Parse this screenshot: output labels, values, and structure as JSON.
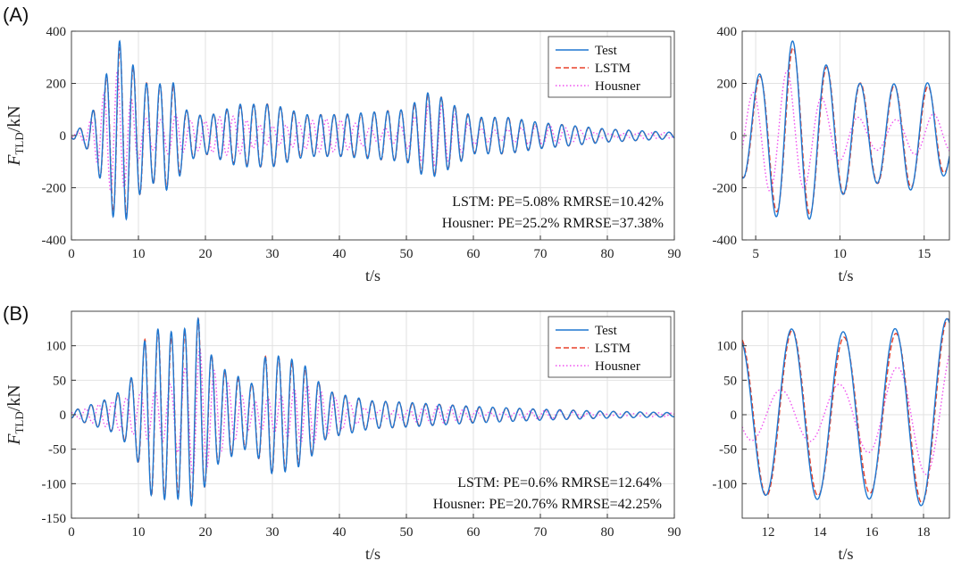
{
  "figure": {
    "panel_a_label": "(A)",
    "panel_b_label": "(B)"
  },
  "chart_data": [
    {
      "id": "A-main",
      "type": "line",
      "xlabel": "t/s",
      "ylabel": "F",
      "ylabel_sub": "TLD",
      "ylabel_unit": "/kN",
      "xlim": [
        0,
        90
      ],
      "ylim": [
        -400,
        400
      ],
      "xticks": [
        0,
        10,
        20,
        30,
        40,
        50,
        60,
        70,
        80,
        90
      ],
      "yticks": [
        -400,
        -200,
        0,
        200,
        400
      ],
      "grid": true,
      "legend_position": "top-right",
      "annotations": [
        "LSTM:    PE=5.08%  RMRSE=10.42%",
        "Housner: PE=25.2%  RMRSE=37.38%"
      ],
      "series": [
        {
          "name": "Test",
          "color": "#1f77d0",
          "dash": "solid"
        },
        {
          "name": "LSTM",
          "color": "#e8402a",
          "dash": "dashed"
        },
        {
          "name": "Housner",
          "color": "#f050f0",
          "dash": "dotted"
        }
      ],
      "envelope": {
        "t": [
          0,
          2,
          3.5,
          5,
          7,
          8,
          10,
          12,
          14,
          15.5,
          17,
          20,
          25,
          30,
          35,
          40,
          45,
          50,
          53,
          55,
          60,
          65,
          70,
          80,
          90
        ],
        "amp": [
          10,
          40,
          110,
          220,
          370,
          330,
          230,
          180,
          210,
          200,
          100,
          70,
          120,
          120,
          80,
          80,
          90,
          100,
          165,
          150,
          70,
          70,
          50,
          25,
          12
        ]
      },
      "period": 2.0,
      "phase_peak_t": 7.2
    },
    {
      "id": "A-zoom",
      "type": "line",
      "xlabel": "t/s",
      "xlim": [
        4.2,
        16.5
      ],
      "ylim": [
        -400,
        400
      ],
      "xticks": [
        5,
        10,
        15
      ],
      "yticks": [
        -400,
        -200,
        0,
        200,
        400
      ],
      "grid": true,
      "zoom_of": "A-main"
    },
    {
      "id": "B-main",
      "type": "line",
      "xlabel": "t/s",
      "ylabel": "F",
      "ylabel_sub": "TLD",
      "ylabel_unit": "/kN",
      "xlim": [
        0,
        90
      ],
      "ylim": [
        -150,
        150
      ],
      "xticks": [
        0,
        10,
        20,
        30,
        40,
        50,
        60,
        70,
        80,
        90
      ],
      "yticks": [
        -150,
        -100,
        -50,
        0,
        50,
        100
      ],
      "grid": true,
      "legend_position": "top-right",
      "annotations": [
        "LSTM:    PE=0.6%      RMRSE=12.64%",
        "Housner: PE=20.76%  RMRSE=42.25%"
      ],
      "series": [
        {
          "name": "Test",
          "color": "#1f77d0",
          "dash": "solid"
        },
        {
          "name": "LSTM",
          "color": "#e8402a",
          "dash": "dashed"
        },
        {
          "name": "Housner",
          "color": "#f050f0",
          "dash": "dotted"
        }
      ],
      "envelope": {
        "t": [
          0,
          3,
          6,
          8,
          10,
          11,
          13,
          15,
          17,
          19,
          20,
          22,
          25,
          27,
          29,
          31,
          33,
          35,
          38,
          40,
          45,
          50,
          60,
          70,
          80,
          90
        ],
        "amp": [
          5,
          15,
          25,
          40,
          70,
          110,
          125,
          120,
          125,
          140,
          100,
          70,
          55,
          45,
          85,
          85,
          80,
          70,
          35,
          30,
          20,
          18,
          12,
          8,
          5,
          3
        ]
      },
      "period": 2.0,
      "phase_peak_t": 18.9
    },
    {
      "id": "B-zoom",
      "type": "line",
      "xlabel": "t/s",
      "xlim": [
        11,
        19
      ],
      "ylim": [
        -150,
        150
      ],
      "xticks": [
        12,
        14,
        16,
        18
      ],
      "yticks": [
        -100,
        -50,
        0,
        50,
        100
      ],
      "grid": true,
      "zoom_of": "B-main"
    }
  ]
}
